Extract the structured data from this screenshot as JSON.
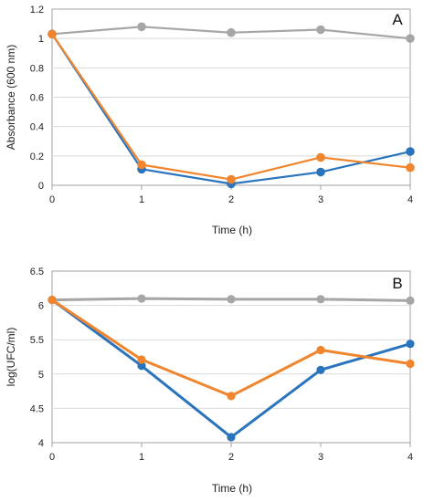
{
  "colors": {
    "blue": "#2a74bd",
    "orange": "#f0852e",
    "gray": "#a6a6a6",
    "grid": "#d9d9d9",
    "axis": "#8c8c8c"
  },
  "chart_data": [
    {
      "type": "line",
      "panel_label": "A",
      "xlabel": "Time (h)",
      "ylabel": "Absorbance (600 nm)",
      "x": [
        0,
        1,
        2,
        3,
        4
      ],
      "xlim": [
        0,
        4
      ],
      "ylim": [
        0,
        1.2
      ],
      "x_ticks": [
        "0",
        "1",
        "2",
        "3",
        "4"
      ],
      "y_ticks": [
        "0",
        "0.2",
        "0.4",
        "0.6",
        "0.8",
        "1",
        "1.2"
      ],
      "grid": "horizontal",
      "series": [
        {
          "color": "#a6a6a6",
          "values": [
            1.03,
            1.08,
            1.04,
            1.06,
            1.0
          ]
        },
        {
          "color": "#2a74bd",
          "values": [
            1.03,
            0.11,
            0.01,
            0.09,
            0.23
          ]
        },
        {
          "color": "#f0852e",
          "values": [
            1.03,
            0.14,
            0.04,
            0.19,
            0.12
          ]
        }
      ]
    },
    {
      "type": "line",
      "panel_label": "B",
      "xlabel": "Time (h)",
      "ylabel": "log(UFC/ml)",
      "x": [
        0,
        1,
        2,
        3,
        4
      ],
      "xlim": [
        0,
        4
      ],
      "ylim": [
        4,
        6.5
      ],
      "x_ticks": [
        "0",
        "1",
        "2",
        "3",
        "4"
      ],
      "y_ticks": [
        "4",
        "4.5",
        "5",
        "5.5",
        "6",
        "6.5"
      ],
      "grid": "horizontal",
      "series": [
        {
          "color": "#a6a6a6",
          "values": [
            6.08,
            6.1,
            6.09,
            6.09,
            6.07
          ]
        },
        {
          "color": "#2a74bd",
          "values": [
            6.08,
            5.12,
            4.08,
            5.06,
            5.44
          ]
        },
        {
          "color": "#f0852e",
          "values": [
            6.08,
            5.21,
            4.68,
            5.35,
            5.15
          ]
        }
      ]
    }
  ]
}
